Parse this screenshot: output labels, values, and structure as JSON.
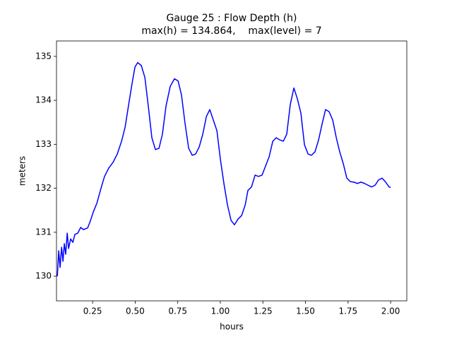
{
  "chart_data": {
    "type": "line",
    "title": "Gauge 25 : Flow Depth (h)",
    "subtitle": "max(h) = 134.864,    max(level) = 7",
    "x_label": "hours",
    "y_label": "meters",
    "xlim": [
      0.038,
      2.095
    ],
    "ylim": [
      129.44,
      135.35
    ],
    "xticks": [
      0.25,
      {
        "value": 0.5,
        "label": "0.50"
      },
      0.75,
      {
        "value": 1.0,
        "label": "1.00"
      },
      1.25,
      {
        "value": 1.5,
        "label": "1.50"
      },
      1.75,
      {
        "value": 2.0,
        "label": "2.00"
      }
    ],
    "yticks": [
      130,
      131,
      132,
      133,
      134,
      135
    ],
    "grid": false,
    "series": [
      {
        "color": "#0000ff",
        "x": [
          0.043,
          0.051,
          0.059,
          0.068,
          0.076,
          0.084,
          0.092,
          0.101,
          0.109,
          0.121,
          0.134,
          0.146,
          0.163,
          0.18,
          0.196,
          0.221,
          0.238,
          0.254,
          0.275,
          0.3,
          0.32,
          0.345,
          0.37,
          0.395,
          0.42,
          0.441,
          0.462,
          0.482,
          0.499,
          0.515,
          0.536,
          0.557,
          0.577,
          0.598,
          0.619,
          0.64,
          0.66,
          0.681,
          0.706,
          0.731,
          0.752,
          0.772,
          0.793,
          0.814,
          0.835,
          0.855,
          0.876,
          0.897,
          0.918,
          0.938,
          0.959,
          0.98,
          1.0,
          1.021,
          1.042,
          1.063,
          1.083,
          1.104,
          1.125,
          1.146,
          1.162,
          1.183,
          1.204,
          1.224,
          1.245,
          1.266,
          1.287,
          1.308,
          1.328,
          1.349,
          1.37,
          1.39,
          1.411,
          1.432,
          1.452,
          1.473,
          1.494,
          1.515,
          1.535,
          1.556,
          1.577,
          1.598,
          1.618,
          1.639,
          1.66,
          1.681,
          1.701,
          1.722,
          1.743,
          1.764,
          1.784,
          1.805,
          1.826,
          1.847,
          1.867,
          1.888,
          1.909,
          1.929,
          1.95,
          1.971,
          1.991,
          2.0
        ],
        "values": [
          130.0,
          130.58,
          130.2,
          130.66,
          130.34,
          130.74,
          130.5,
          130.98,
          130.63,
          130.85,
          130.77,
          130.95,
          130.98,
          131.11,
          131.06,
          131.1,
          131.27,
          131.46,
          131.66,
          132.01,
          132.27,
          132.46,
          132.59,
          132.78,
          133.07,
          133.39,
          133.91,
          134.39,
          134.76,
          134.86,
          134.79,
          134.52,
          133.87,
          133.15,
          132.88,
          132.91,
          133.23,
          133.87,
          134.32,
          134.49,
          134.44,
          134.12,
          133.47,
          132.91,
          132.75,
          132.78,
          132.94,
          133.23,
          133.63,
          133.79,
          133.55,
          133.31,
          132.67,
          132.11,
          131.62,
          131.27,
          131.17,
          131.3,
          131.38,
          131.62,
          131.95,
          132.03,
          132.3,
          132.27,
          132.3,
          132.51,
          132.72,
          133.07,
          133.15,
          133.1,
          133.07,
          133.23,
          133.91,
          134.28,
          134.04,
          133.71,
          132.99,
          132.78,
          132.75,
          132.83,
          133.1,
          133.47,
          133.79,
          133.74,
          133.55,
          133.15,
          132.83,
          132.56,
          132.23,
          132.15,
          132.14,
          132.11,
          132.14,
          132.11,
          132.07,
          132.03,
          132.07,
          132.19,
          132.23,
          132.14,
          132.03,
          132.02
        ]
      }
    ]
  }
}
